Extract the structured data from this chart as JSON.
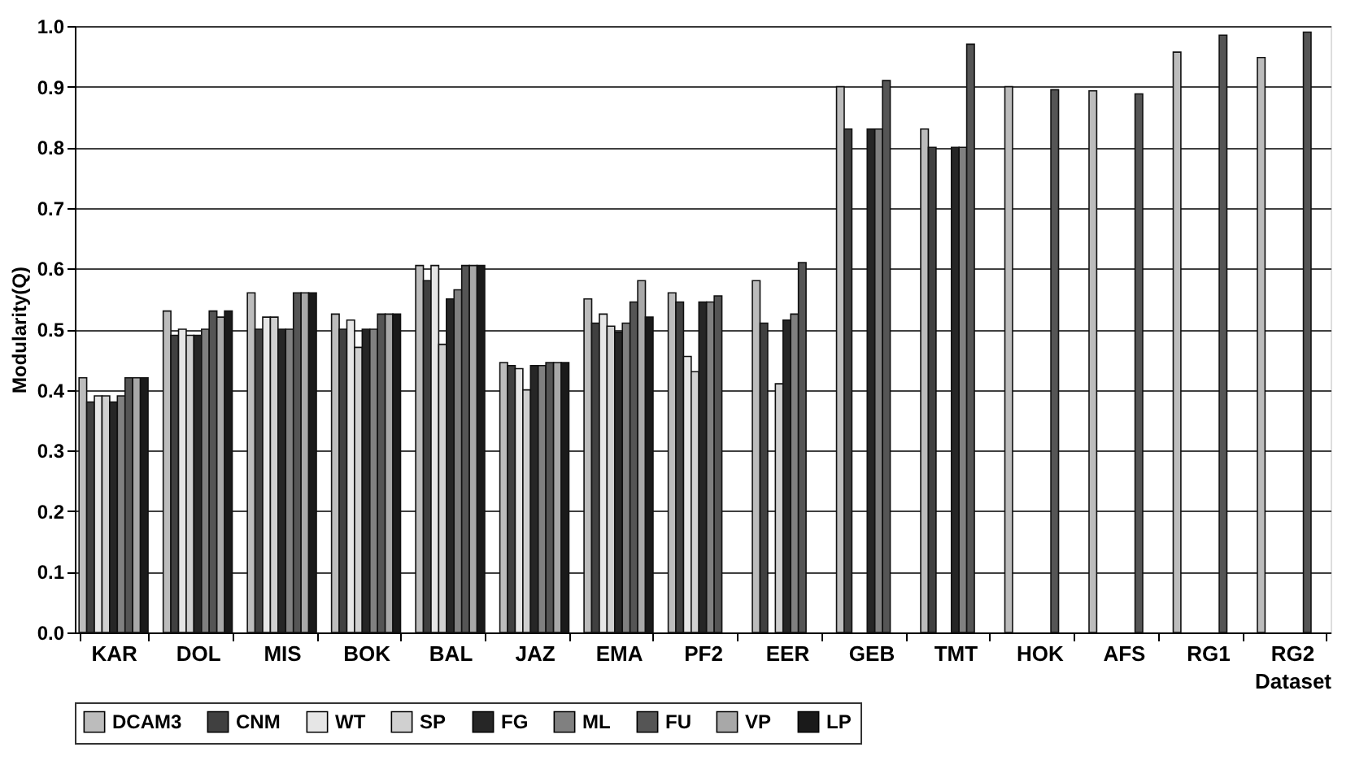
{
  "chart_data": {
    "type": "bar",
    "xlabel": "Dataset",
    "ylabel": "Modularity(Q)",
    "categories": [
      "KAR",
      "DOL",
      "MIS",
      "BOK",
      "BAL",
      "JAZ",
      "EMA",
      "PF2",
      "EER",
      "GEB",
      "TMT",
      "HOK",
      "AFS",
      "RG1",
      "RG2"
    ],
    "series": [
      {
        "name": "DCAM3",
        "color": "#bcbcbc",
        "values": [
          0.42,
          0.53,
          0.56,
          0.525,
          0.605,
          0.445,
          0.55,
          0.56,
          0.58,
          0.9,
          0.83,
          0.9,
          0.893,
          0.957,
          0.948
        ]
      },
      {
        "name": "CNM",
        "color": "#404040",
        "values": [
          0.38,
          0.49,
          0.5,
          0.5,
          0.58,
          0.44,
          0.51,
          0.545,
          0.51,
          0.83,
          0.8,
          null,
          null,
          null,
          null
        ]
      },
      {
        "name": "WT",
        "color": "#e6e6e6",
        "values": [
          0.39,
          0.5,
          0.52,
          0.515,
          0.605,
          0.435,
          0.525,
          0.455,
          null,
          null,
          null,
          null,
          null,
          null,
          null
        ]
      },
      {
        "name": "SP",
        "color": "#d0d0d0",
        "values": [
          0.39,
          0.49,
          0.52,
          0.47,
          0.475,
          0.4,
          0.505,
          0.43,
          0.41,
          null,
          null,
          null,
          null,
          null,
          null
        ]
      },
      {
        "name": "FG",
        "color": "#262626",
        "values": [
          0.38,
          0.49,
          0.5,
          0.5,
          0.55,
          0.44,
          0.495,
          0.545,
          0.515,
          0.83,
          0.8,
          null,
          null,
          null,
          null
        ]
      },
      {
        "name": "ML",
        "color": "#808080",
        "values": [
          0.39,
          0.5,
          0.5,
          0.5,
          0.565,
          0.44,
          0.51,
          0.545,
          0.525,
          0.83,
          0.8,
          null,
          null,
          null,
          null
        ]
      },
      {
        "name": "FU",
        "color": "#555555",
        "values": [
          0.42,
          0.53,
          0.56,
          0.525,
          0.605,
          0.445,
          0.545,
          0.555,
          0.61,
          0.91,
          0.97,
          0.895,
          0.888,
          0.985,
          0.99
        ]
      },
      {
        "name": "VP",
        "color": "#a8a8a8",
        "values": [
          0.42,
          0.52,
          0.56,
          0.525,
          0.605,
          0.445,
          0.58,
          null,
          null,
          null,
          null,
          null,
          null,
          null,
          null
        ]
      },
      {
        "name": "LP",
        "color": "#1a1a1a",
        "values": [
          0.42,
          0.53,
          0.56,
          0.525,
          0.605,
          0.445,
          0.52,
          null,
          null,
          null,
          null,
          null,
          null,
          null,
          null
        ]
      }
    ],
    "ylim": [
      0,
      1.0
    ],
    "yticks": [
      {
        "value": 0,
        "label": "0.0"
      },
      0.1,
      0.2,
      0.3,
      0.4,
      0.5,
      0.6,
      0.7,
      0.8,
      0.9,
      {
        "value": 1.0,
        "label": "1.0"
      }
    ],
    "grid": "y",
    "legend": "bottom"
  }
}
